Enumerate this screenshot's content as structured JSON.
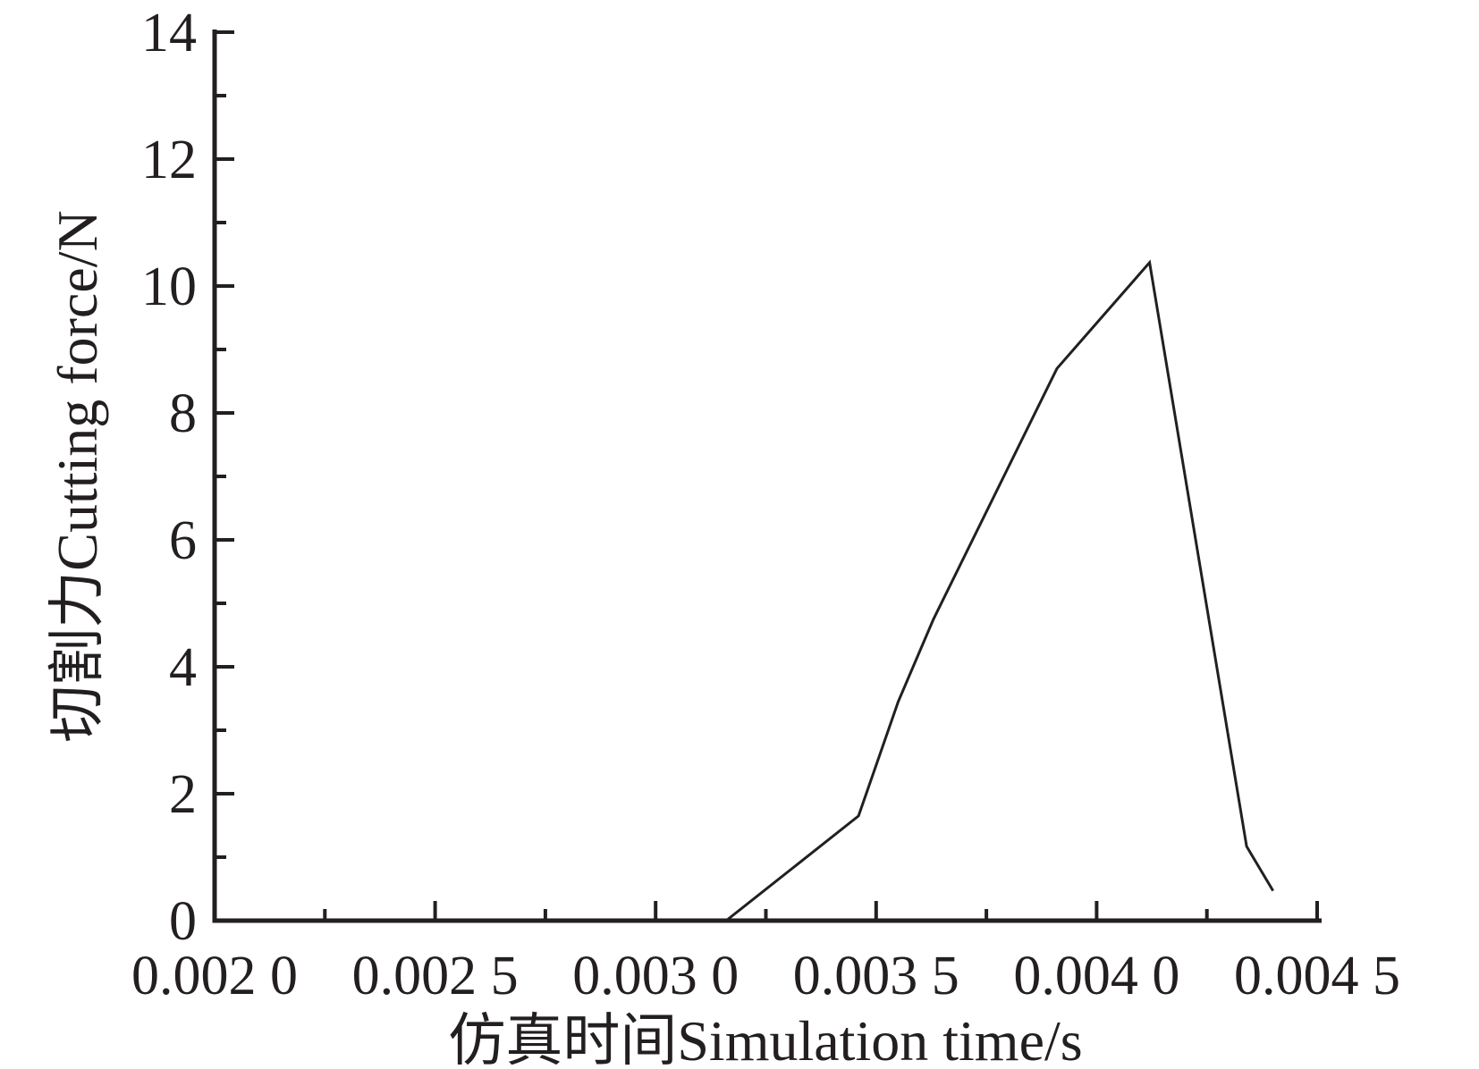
{
  "chart_data": {
    "type": "line",
    "title": "",
    "xlabel": "仿真时间Simulation time/s",
    "ylabel": "切割力Cutting force/N",
    "xlim": [
      0.002,
      0.0045
    ],
    "ylim": [
      0,
      14
    ],
    "grid": false,
    "legend": "none",
    "x_major_ticks": [
      0.002,
      0.0025,
      0.003,
      0.0035,
      0.004,
      0.0045
    ],
    "x_major_tick_labels": [
      "0.002 0",
      "0.002 5",
      "0.003 0",
      "0.003 5",
      "0.004 0",
      "0.004 5"
    ],
    "x_minor_ticks": [
      0.00225,
      0.00275,
      0.00325,
      0.00375,
      0.00425
    ],
    "y_major_ticks": [
      0,
      2,
      4,
      6,
      8,
      10,
      12,
      14
    ],
    "y_major_tick_labels": [
      "0",
      "2",
      "4",
      "6",
      "8",
      "10",
      "12",
      "14"
    ],
    "y_minor_ticks": [
      1,
      3,
      5,
      7,
      9,
      11,
      13
    ],
    "series": [
      {
        "name": "Cutting force",
        "x": [
          0.00316,
          0.00346,
          0.00355,
          0.00363,
          0.00391,
          0.00412,
          0.00434,
          0.0044
        ],
        "y": [
          0,
          1.65,
          3.45,
          4.75,
          8.7,
          10.37,
          1.17,
          0.47
        ]
      }
    ]
  },
  "colors": {
    "background": "#ffffff",
    "axis": "#231f20",
    "curve": "#231f20",
    "text": "#231f20"
  }
}
